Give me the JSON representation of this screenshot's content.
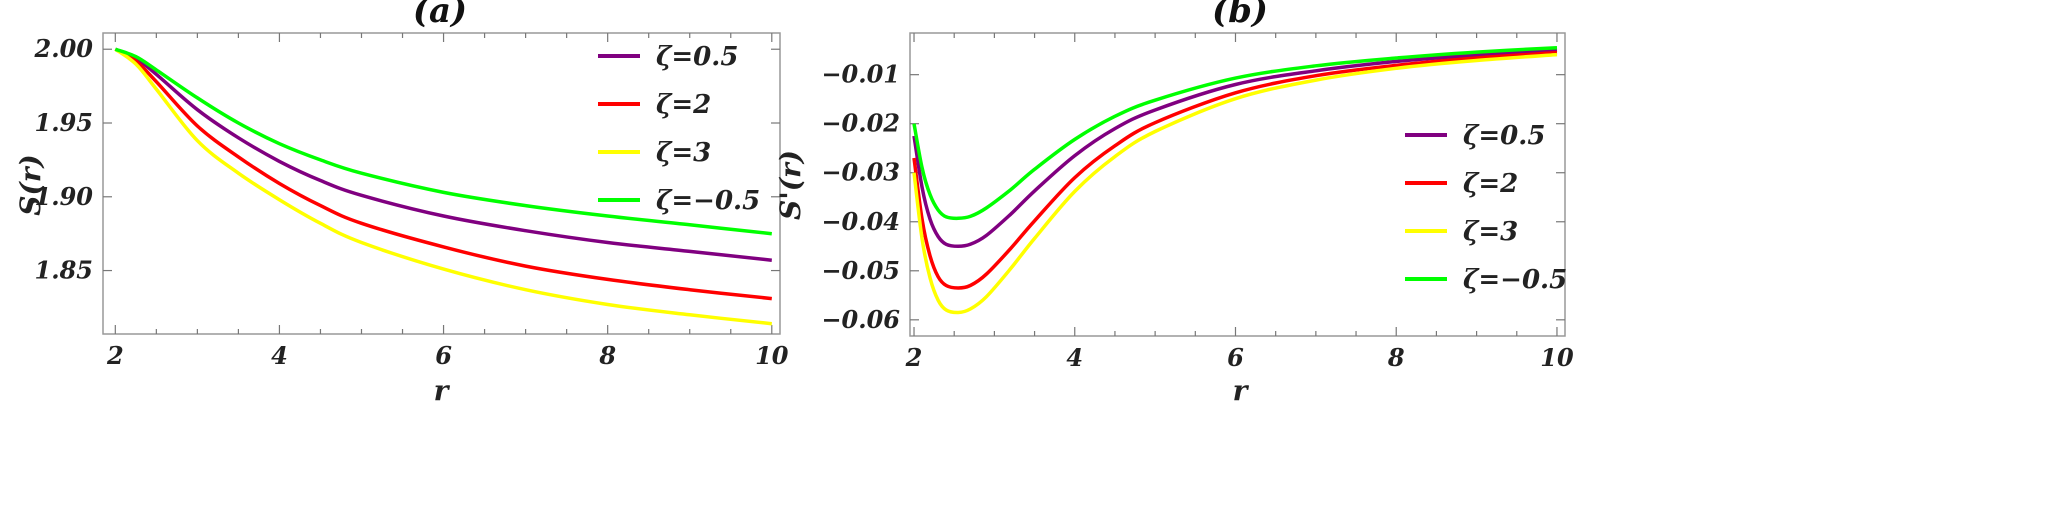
{
  "chart_data": [
    {
      "type": "line",
      "title": "(a)",
      "xlabel": "r",
      "ylabel": "S(r)",
      "xlim": [
        1.85,
        10.1
      ],
      "ylim": [
        1.807,
        2.011
      ],
      "xticks": [
        2,
        4,
        6,
        8,
        10
      ],
      "yticks": [
        1.85,
        1.9,
        1.95,
        2.0
      ],
      "ytick_labels": [
        "1.85",
        "1.90",
        "1.95",
        "2.00"
      ],
      "xtick_labels": [
        "2",
        "4",
        "6",
        "8",
        "10"
      ],
      "legend_position": "top-right",
      "series": [
        {
          "name": "ζ=0.5",
          "color": "#800080",
          "x": [
            2.0,
            2.25,
            2.5,
            3.0,
            3.5,
            4.0,
            4.5,
            5.0,
            6.0,
            7.0,
            8.0,
            9.0,
            10.0
          ],
          "y": [
            2.0,
            1.994,
            1.983,
            1.959,
            1.94,
            1.924,
            1.911,
            1.901,
            1.887,
            1.877,
            1.869,
            1.863,
            1.857
          ]
        },
        {
          "name": "ζ=2",
          "color": "#ff0000",
          "x": [
            2.0,
            2.25,
            2.5,
            3.0,
            3.5,
            4.0,
            4.5,
            5.0,
            6.0,
            7.0,
            8.0,
            9.0,
            10.0
          ],
          "y": [
            2.0,
            1.992,
            1.978,
            1.948,
            1.927,
            1.909,
            1.894,
            1.882,
            1.866,
            1.853,
            1.844,
            1.837,
            1.831
          ]
        },
        {
          "name": "ζ=3",
          "color": "#ffff00",
          "x": [
            2.0,
            2.25,
            2.5,
            3.0,
            3.5,
            4.0,
            4.5,
            5.0,
            6.0,
            7.0,
            8.0,
            9.0,
            10.0
          ],
          "y": [
            2.0,
            1.99,
            1.973,
            1.938,
            1.916,
            1.898,
            1.882,
            1.869,
            1.851,
            1.837,
            1.827,
            1.82,
            1.814
          ]
        },
        {
          "name": "ζ=−0.5",
          "color": "#00ff00",
          "x": [
            2.0,
            2.25,
            2.5,
            3.0,
            3.5,
            4.0,
            4.5,
            5.0,
            6.0,
            7.0,
            8.0,
            9.0,
            10.0
          ],
          "y": [
            2.0,
            1.995,
            1.986,
            1.967,
            1.95,
            1.936,
            1.925,
            1.916,
            1.903,
            1.894,
            1.887,
            1.881,
            1.875
          ]
        }
      ]
    },
    {
      "type": "line",
      "title": "(b)",
      "xlabel": "r",
      "ylabel": "S'(r)",
      "xlim": [
        1.95,
        10.1
      ],
      "ylim": [
        -0.0633,
        -0.0015
      ],
      "xticks": [
        2,
        4,
        6,
        8,
        10
      ],
      "yticks": [
        -0.06,
        -0.05,
        -0.04,
        -0.03,
        -0.02,
        -0.01
      ],
      "ytick_labels": [
        "−0.06",
        "−0.05",
        "−0.04",
        "−0.03",
        "−0.02",
        "−0.01"
      ],
      "xtick_labels": [
        "2",
        "4",
        "6",
        "8",
        "10"
      ],
      "legend_position": "right",
      "series": [
        {
          "name": "ζ=0.5",
          "color": "#800080",
          "x": [
            2.0,
            2.1,
            2.2,
            2.3,
            2.4,
            2.55,
            2.7,
            2.9,
            3.2,
            3.5,
            4.0,
            4.5,
            5.0,
            6.0,
            7.0,
            8.0,
            9.0,
            10.0
          ],
          "y": [
            -0.0225,
            -0.033,
            -0.0395,
            -0.043,
            -0.0446,
            -0.045,
            -0.0446,
            -0.0428,
            -0.0385,
            -0.0337,
            -0.0265,
            -0.021,
            -0.0172,
            -0.012,
            -0.0092,
            -0.0073,
            -0.006,
            -0.005
          ]
        },
        {
          "name": "ζ=2",
          "color": "#ff0000",
          "x": [
            2.0,
            2.1,
            2.2,
            2.3,
            2.4,
            2.55,
            2.7,
            2.9,
            3.2,
            3.5,
            4.0,
            4.5,
            5.0,
            6.0,
            7.0,
            8.0,
            9.0,
            10.0
          ],
          "y": [
            -0.027,
            -0.0395,
            -0.047,
            -0.0512,
            -0.053,
            -0.0535,
            -0.053,
            -0.0507,
            -0.0455,
            -0.0398,
            -0.031,
            -0.0245,
            -0.0198,
            -0.0137,
            -0.0102,
            -0.0081,
            -0.0066,
            -0.0055
          ]
        },
        {
          "name": "ζ=3",
          "color": "#ffff00",
          "x": [
            2.0,
            2.1,
            2.2,
            2.3,
            2.4,
            2.55,
            2.7,
            2.9,
            3.2,
            3.5,
            4.0,
            4.5,
            5.0,
            6.0,
            7.0,
            8.0,
            9.0,
            10.0
          ],
          "y": [
            -0.03,
            -0.0435,
            -0.0515,
            -0.056,
            -0.058,
            -0.0585,
            -0.0578,
            -0.0553,
            -0.0496,
            -0.0434,
            -0.0338,
            -0.0267,
            -0.0216,
            -0.0149,
            -0.0111,
            -0.0087,
            -0.0071,
            -0.0059
          ]
        },
        {
          "name": "ζ=−0.5",
          "color": "#00ff00",
          "x": [
            2.0,
            2.1,
            2.2,
            2.3,
            2.4,
            2.55,
            2.7,
            2.9,
            3.2,
            3.5,
            4.0,
            4.5,
            5.0,
            6.0,
            7.0,
            8.0,
            9.0,
            10.0
          ],
          "y": [
            -0.02,
            -0.029,
            -0.0345,
            -0.0376,
            -0.039,
            -0.0393,
            -0.0389,
            -0.0372,
            -0.0335,
            -0.0293,
            -0.0232,
            -0.0185,
            -0.0152,
            -0.0107,
            -0.0082,
            -0.0066,
            -0.0054,
            -0.0045
          ]
        }
      ]
    }
  ]
}
